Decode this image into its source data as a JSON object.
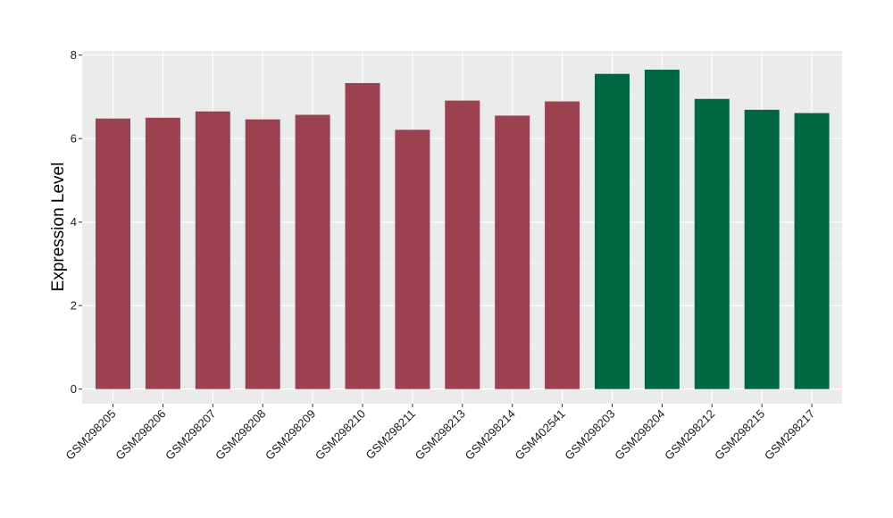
{
  "chart_data": {
    "type": "bar",
    "title": "",
    "xlabel": "",
    "ylabel": "Expression Level",
    "ylim": [
      -0.35,
      8.1
    ],
    "yticks": [
      0,
      2,
      4,
      6,
      8
    ],
    "grid": true,
    "background": "#ebebeb",
    "categories": [
      "GSM298205",
      "GSM298206",
      "GSM298207",
      "GSM298208",
      "GSM298209",
      "GSM298210",
      "GSM298211",
      "GSM298213",
      "GSM298214",
      "GSM402541",
      "GSM298203",
      "GSM298204",
      "GSM298212",
      "GSM298215",
      "GSM298217"
    ],
    "values": [
      6.48,
      6.5,
      6.65,
      6.46,
      6.57,
      7.33,
      6.21,
      6.91,
      6.55,
      6.89,
      7.55,
      7.65,
      6.95,
      6.69,
      6.61
    ],
    "series": [
      {
        "color": "#9b4150",
        "categories": [
          "GSM298205",
          "GSM298206",
          "GSM298207",
          "GSM298208",
          "GSM298209",
          "GSM298210",
          "GSM298211",
          "GSM298213",
          "GSM298214",
          "GSM402541"
        ]
      },
      {
        "color": "#006744",
        "categories": [
          "GSM298203",
          "GSM298204",
          "GSM298212",
          "GSM298215",
          "GSM298217"
        ]
      }
    ]
  }
}
